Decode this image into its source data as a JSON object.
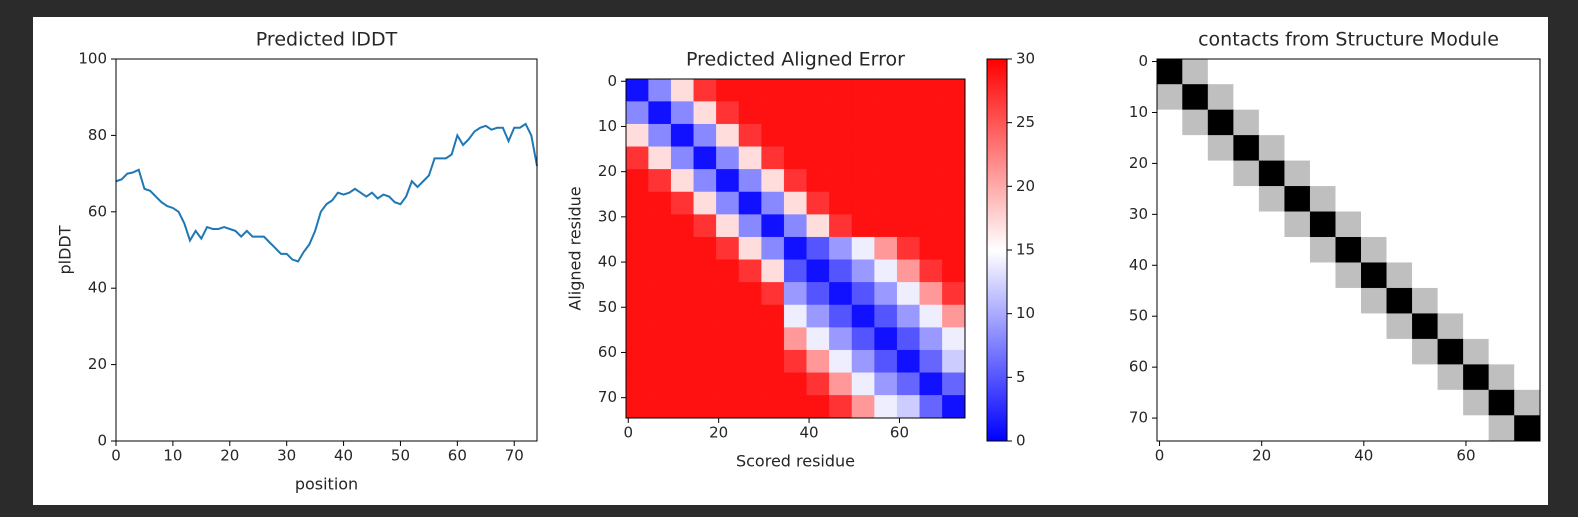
{
  "chart_data": [
    {
      "type": "line",
      "title": "Predicted lDDT",
      "xlabel": "position",
      "ylabel": "plDDT",
      "color": "#1f77b4",
      "x": [
        0,
        1,
        2,
        3,
        4,
        5,
        6,
        7,
        8,
        9,
        10,
        11,
        12,
        13,
        14,
        15,
        16,
        17,
        18,
        19,
        20,
        21,
        22,
        23,
        24,
        25,
        26,
        27,
        28,
        29,
        30,
        31,
        32,
        33,
        34,
        35,
        36,
        37,
        38,
        39,
        40,
        41,
        42,
        43,
        44,
        45,
        46,
        47,
        48,
        49,
        50,
        51,
        52,
        53,
        54,
        55,
        56,
        57,
        58,
        59,
        60,
        61,
        62,
        63,
        64,
        65,
        66,
        67,
        68,
        69,
        70,
        71,
        72,
        73,
        74
      ],
      "values": [
        68,
        68.5,
        70,
        70.3,
        71,
        66,
        65.5,
        64,
        62.5,
        61.5,
        61,
        60,
        57,
        52.5,
        55,
        53,
        56,
        55.5,
        55.5,
        56,
        55.5,
        55,
        53.5,
        55,
        53.5,
        53.5,
        53.5,
        52,
        50.5,
        49,
        49,
        47.5,
        47,
        49.5,
        51.5,
        55,
        60,
        62,
        63,
        65,
        64.5,
        65,
        66,
        65,
        64,
        65,
        63.5,
        64.5,
        64,
        62.5,
        62,
        64,
        68,
        66.5,
        68,
        69.5,
        74,
        74,
        74,
        75,
        80,
        77.5,
        79,
        81,
        82,
        82.5,
        81.5,
        82,
        82,
        78.5,
        82,
        82,
        83,
        80,
        72
      ],
      "xlim": [
        0,
        74
      ],
      "xticks": [
        0,
        10,
        20,
        30,
        40,
        50,
        60,
        70
      ],
      "ylim": [
        0,
        100
      ],
      "yticks": [
        0,
        20,
        40,
        60,
        80,
        100
      ],
      "grid": false
    },
    {
      "type": "heatmap",
      "title": "Predicted Aligned Error",
      "xlabel": "Scored residue",
      "ylabel": "Aligned residue",
      "cmap": "bwr",
      "x_edges": [
        -0.5,
        4.5,
        9.5,
        14.5,
        19.5,
        24.5,
        29.5,
        34.5,
        39.5,
        44.5,
        49.5,
        54.5,
        59.5,
        64.5,
        69.5,
        74.5
      ],
      "y_edges": [
        -0.5,
        4.5,
        9.5,
        14.5,
        19.5,
        24.5,
        29.5,
        34.5,
        39.5,
        44.5,
        49.5,
        54.5,
        59.5,
        64.5,
        69.5,
        74.5
      ],
      "values": [
        [
          1,
          8,
          17,
          27,
          29,
          29,
          29,
          29,
          29,
          29,
          29,
          29,
          29,
          29,
          29
        ],
        [
          8,
          1,
          8,
          17,
          27,
          29,
          29,
          29,
          29,
          29,
          29,
          29,
          29,
          29,
          29
        ],
        [
          17,
          8,
          1,
          8,
          17,
          27,
          29,
          29,
          29,
          29,
          29,
          29,
          29,
          29,
          29
        ],
        [
          27,
          17,
          8,
          1,
          8,
          17,
          27,
          29,
          29,
          29,
          29,
          29,
          29,
          29,
          29
        ],
        [
          29,
          27,
          17,
          8,
          1,
          8,
          17,
          27,
          29,
          29,
          29,
          29,
          29,
          29,
          29
        ],
        [
          29,
          29,
          27,
          17,
          8,
          1,
          8,
          17,
          27,
          29,
          29,
          29,
          29,
          29,
          29
        ],
        [
          29,
          29,
          29,
          27,
          17,
          8,
          1,
          8,
          17,
          27,
          29,
          29,
          29,
          29,
          29
        ],
        [
          29,
          29,
          29,
          29,
          27,
          17,
          8,
          1,
          5,
          9,
          14,
          21,
          27,
          29,
          29
        ],
        [
          29,
          29,
          29,
          29,
          29,
          27,
          17,
          5,
          1,
          5,
          9,
          14,
          21,
          27,
          29
        ],
        [
          29,
          29,
          29,
          29,
          29,
          29,
          27,
          9,
          5,
          1,
          5,
          9,
          14,
          21,
          27
        ],
        [
          29,
          29,
          29,
          29,
          29,
          29,
          29,
          14,
          9,
          5,
          1,
          5,
          9,
          14,
          21
        ],
        [
          29,
          29,
          29,
          29,
          29,
          29,
          29,
          21,
          14,
          9,
          5,
          1,
          5,
          9,
          14
        ],
        [
          29,
          29,
          29,
          29,
          29,
          29,
          29,
          27,
          21,
          14,
          9,
          5,
          1,
          6,
          12
        ],
        [
          29,
          29,
          29,
          29,
          29,
          29,
          29,
          29,
          27,
          21,
          14,
          9,
          6,
          1,
          6
        ],
        [
          29,
          29,
          29,
          29,
          29,
          29,
          29,
          29,
          29,
          27,
          21,
          14,
          12,
          6,
          1
        ]
      ],
      "xlim": [
        -0.5,
        74.5
      ],
      "xticks": [
        0,
        20,
        40,
        60
      ],
      "ylim": [
        74.5,
        -0.5
      ],
      "yticks": [
        0,
        10,
        20,
        30,
        40,
        50,
        60,
        70
      ],
      "clim": [
        0,
        30
      ],
      "cticks": [
        0,
        5,
        10,
        15,
        20,
        25,
        30
      ]
    },
    {
      "type": "heatmap",
      "title": "contacts from Structure Module",
      "cmap": "greys",
      "x_edges": [
        -0.5,
        4.5,
        9.5,
        14.5,
        19.5,
        24.5,
        29.5,
        34.5,
        39.5,
        44.5,
        49.5,
        54.5,
        59.5,
        64.5,
        69.5,
        74.5
      ],
      "y_edges": [
        -0.5,
        4.5,
        9.5,
        14.5,
        19.5,
        24.5,
        29.5,
        34.5,
        39.5,
        44.5,
        49.5,
        54.5,
        59.5,
        64.5,
        69.5,
        74.5
      ],
      "values": [
        [
          1,
          0.25,
          0,
          0,
          0,
          0,
          0,
          0,
          0,
          0,
          0,
          0,
          0,
          0,
          0
        ],
        [
          0.25,
          1,
          0.25,
          0,
          0,
          0,
          0,
          0,
          0,
          0,
          0,
          0,
          0,
          0,
          0
        ],
        [
          0,
          0.25,
          1,
          0.25,
          0,
          0,
          0,
          0,
          0,
          0,
          0,
          0,
          0,
          0,
          0
        ],
        [
          0,
          0,
          0.25,
          1,
          0.25,
          0,
          0,
          0,
          0,
          0,
          0,
          0,
          0,
          0,
          0
        ],
        [
          0,
          0,
          0,
          0.25,
          1,
          0.25,
          0,
          0,
          0,
          0,
          0,
          0,
          0,
          0,
          0
        ],
        [
          0,
          0,
          0,
          0,
          0.25,
          1,
          0.25,
          0,
          0,
          0,
          0,
          0,
          0,
          0,
          0
        ],
        [
          0,
          0,
          0,
          0,
          0,
          0.25,
          1,
          0.25,
          0,
          0,
          0,
          0,
          0,
          0,
          0
        ],
        [
          0,
          0,
          0,
          0,
          0,
          0,
          0.25,
          1,
          0.25,
          0,
          0,
          0,
          0,
          0,
          0
        ],
        [
          0,
          0,
          0,
          0,
          0,
          0,
          0,
          0.25,
          1,
          0.25,
          0,
          0,
          0,
          0,
          0
        ],
        [
          0,
          0,
          0,
          0,
          0,
          0,
          0,
          0,
          0.25,
          1,
          0.25,
          0,
          0,
          0,
          0
        ],
        [
          0,
          0,
          0,
          0,
          0,
          0,
          0,
          0,
          0,
          0.25,
          1,
          0.25,
          0,
          0,
          0
        ],
        [
          0,
          0,
          0,
          0,
          0,
          0,
          0,
          0,
          0,
          0,
          0.25,
          1,
          0.25,
          0,
          0
        ],
        [
          0,
          0,
          0,
          0,
          0,
          0,
          0,
          0,
          0,
          0,
          0,
          0.25,
          1,
          0.25,
          0
        ],
        [
          0,
          0,
          0,
          0,
          0,
          0,
          0,
          0,
          0,
          0,
          0,
          0,
          0.25,
          1,
          0.25
        ],
        [
          0,
          0,
          0,
          0,
          0,
          0,
          0,
          0,
          0,
          0,
          0,
          0,
          0,
          0.25,
          1
        ]
      ],
      "xlim": [
        -0.5,
        74.5
      ],
      "xticks": [
        0,
        20,
        40,
        60
      ],
      "ylim": [
        74.5,
        -0.5
      ],
      "yticks": [
        0,
        10,
        20,
        30,
        40,
        50,
        60,
        70
      ]
    }
  ]
}
